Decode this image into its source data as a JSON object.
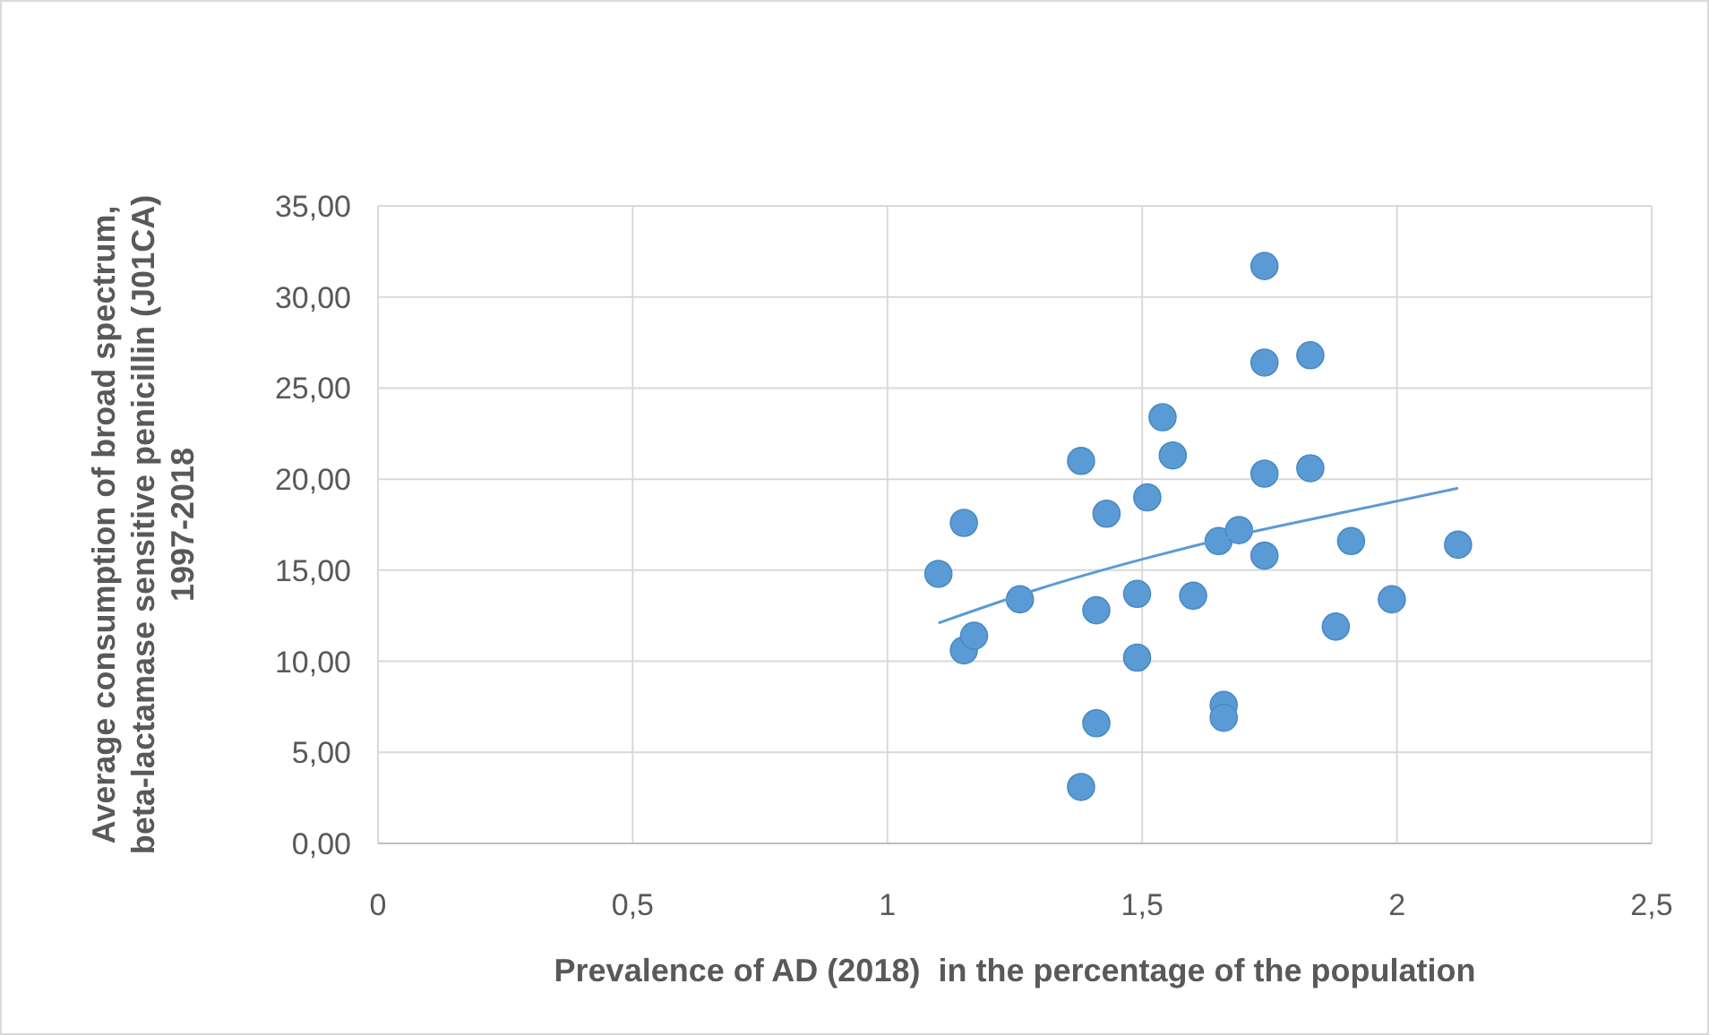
{
  "chart_data": {
    "type": "scatter",
    "xlabel": "Prevalence of AD (2018)  in the percentage of the population",
    "ylabel": "Average consumption of broad spectrum, beta-lactamase sensitive penicillin (J01CA) 1997-2018",
    "xlim": [
      0,
      2.5
    ],
    "ylim": [
      0,
      35
    ],
    "xticks": [
      0,
      {
        "value": 0.5,
        "label": "0,5"
      },
      1,
      {
        "value": 1.5,
        "label": "1,5"
      },
      2,
      {
        "value": 2.5,
        "label": "2,5"
      }
    ],
    "yticks": [
      {
        "value": 0,
        "label": "0,00"
      },
      {
        "value": 5,
        "label": "5,00"
      },
      {
        "value": 10,
        "label": "10,00"
      },
      {
        "value": 15,
        "label": "15,00"
      },
      {
        "value": 20,
        "label": "20,00"
      },
      {
        "value": 25,
        "label": "25,00"
      },
      {
        "value": 30,
        "label": "30,00"
      },
      {
        "value": 35,
        "label": "35,00"
      }
    ],
    "grid": true,
    "marker": "circle",
    "series": [
      {
        "color": "#5b9bd5",
        "x": [
          1.1,
          1.15,
          1.15,
          1.17,
          1.26,
          1.38,
          1.38,
          1.41,
          1.41,
          1.43,
          1.49,
          1.49,
          1.51,
          1.54,
          1.56,
          1.6,
          1.65,
          1.69,
          1.66,
          1.66,
          1.74,
          1.74,
          1.74,
          1.74,
          1.83,
          1.83,
          1.88,
          1.91,
          1.99,
          2.12
        ],
        "values": [
          14.8,
          17.6,
          10.6,
          11.4,
          13.4,
          21.0,
          3.1,
          12.8,
          6.6,
          18.1,
          13.7,
          10.2,
          19.0,
          23.4,
          21.3,
          13.6,
          16.6,
          17.2,
          7.6,
          6.9,
          31.7,
          26.4,
          20.3,
          15.8,
          26.8,
          20.6,
          11.9,
          16.6,
          13.4,
          16.4
        ]
      },
      {
        "type": "line",
        "color": "#5b9bd5",
        "marker": "none",
        "x": [
          1.1,
          1.3,
          1.5,
          1.7,
          1.9,
          2.12
        ],
        "values": [
          12.1,
          14.0,
          15.6,
          17.0,
          18.2,
          19.5
        ]
      }
    ]
  }
}
